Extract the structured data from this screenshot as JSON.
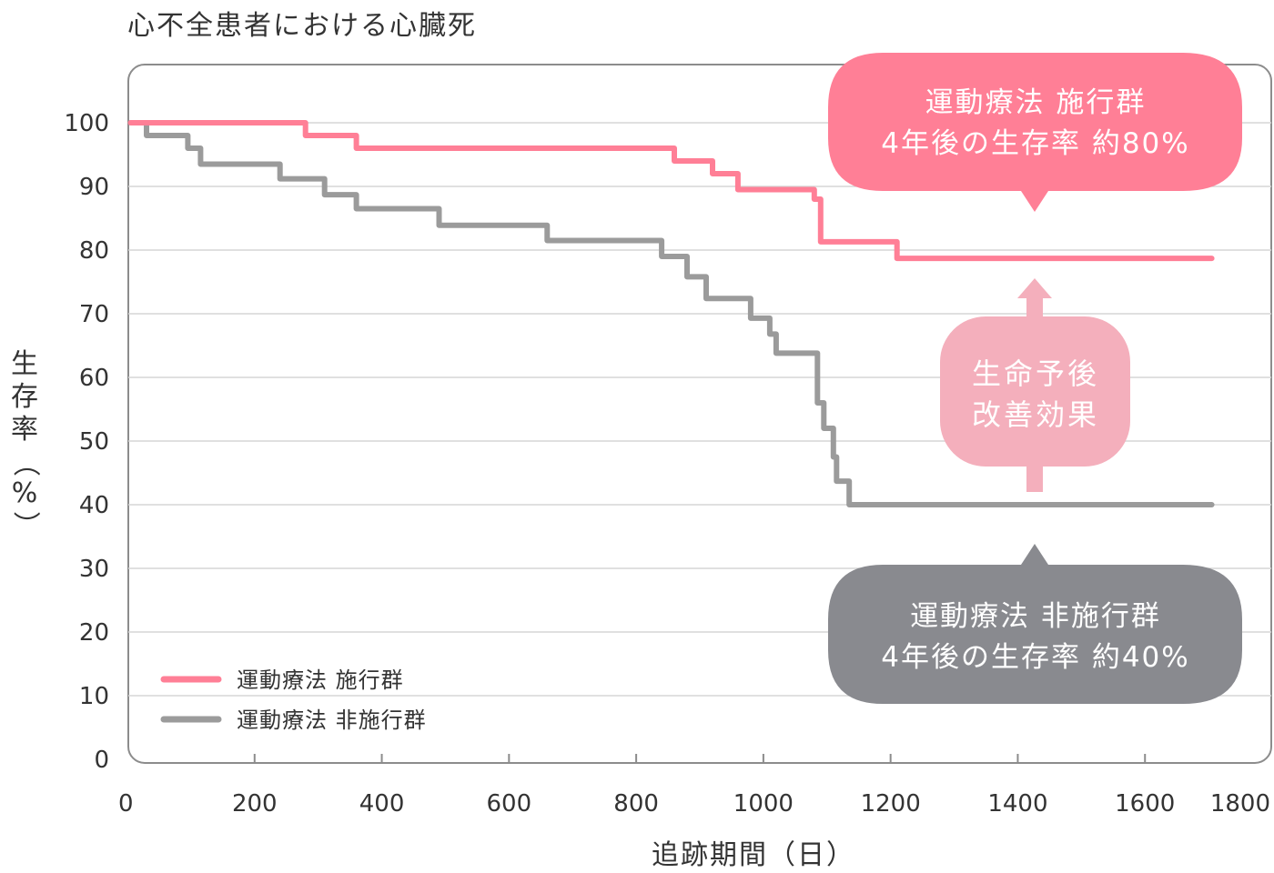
{
  "chart_data": {
    "type": "line",
    "title": "心不全患者における心臓死",
    "xlabel": "追跡期間（日）",
    "ylabel_chars": [
      "生",
      "存",
      "率",
      "（",
      "%",
      "）"
    ],
    "xlim": [
      0,
      1800
    ],
    "ylim": [
      0,
      100
    ],
    "x_ticks": [
      0,
      200,
      400,
      600,
      800,
      1000,
      1200,
      1400,
      1600,
      1800
    ],
    "y_ticks": [
      0,
      10,
      20,
      30,
      40,
      50,
      60,
      70,
      80,
      90,
      100
    ],
    "grid": true,
    "legend_position": "bottom-left",
    "series": [
      {
        "name": "運動療法 施行群",
        "color": "#ff7f96",
        "step": true,
        "points": [
          [
            5,
            100
          ],
          [
            280,
            100
          ],
          [
            280,
            98
          ],
          [
            360,
            98
          ],
          [
            360,
            96
          ],
          [
            860,
            96
          ],
          [
            860,
            94
          ],
          [
            920,
            94
          ],
          [
            920,
            92
          ],
          [
            960,
            92
          ],
          [
            960,
            89.5
          ],
          [
            1080,
            89.5
          ],
          [
            1080,
            88
          ],
          [
            1090,
            88
          ],
          [
            1090,
            81.3
          ],
          [
            1210,
            81.3
          ],
          [
            1210,
            78.7
          ],
          [
            1705,
            78.7
          ]
        ]
      },
      {
        "name": "運動療法 非施行群",
        "color": "#9b9b9b",
        "step": true,
        "points": [
          [
            5,
            100
          ],
          [
            30,
            100
          ],
          [
            30,
            98
          ],
          [
            95,
            98
          ],
          [
            95,
            96
          ],
          [
            115,
            96
          ],
          [
            115,
            93.5
          ],
          [
            240,
            93.5
          ],
          [
            240,
            91.2
          ],
          [
            310,
            91.2
          ],
          [
            310,
            88.7
          ],
          [
            360,
            88.7
          ],
          [
            360,
            86.5
          ],
          [
            490,
            86.5
          ],
          [
            490,
            83.9
          ],
          [
            660,
            83.9
          ],
          [
            660,
            81.5
          ],
          [
            840,
            81.5
          ],
          [
            840,
            79
          ],
          [
            880,
            79
          ],
          [
            880,
            75.8
          ],
          [
            910,
            75.8
          ],
          [
            910,
            72.4
          ],
          [
            980,
            72.4
          ],
          [
            980,
            69.3
          ],
          [
            1010,
            69.3
          ],
          [
            1010,
            66.8
          ],
          [
            1020,
            66.8
          ],
          [
            1020,
            63.8
          ],
          [
            1085,
            63.8
          ],
          [
            1085,
            56
          ],
          [
            1095,
            56
          ],
          [
            1095,
            52
          ],
          [
            1110,
            52
          ],
          [
            1110,
            47.5
          ],
          [
            1115,
            47.5
          ],
          [
            1115,
            43.7
          ],
          [
            1135,
            43.7
          ],
          [
            1135,
            40
          ],
          [
            1705,
            40
          ]
        ]
      }
    ],
    "callouts": {
      "treated": {
        "line1": "運動療法 施行群",
        "line2": "4年後の生存率 約80%",
        "color": "#ff7f96"
      },
      "untreated": {
        "line1": "運動療法 非施行群",
        "line2": "4年後の生存率 約40%",
        "color": "#898a8f"
      },
      "effect": {
        "line1": "生命予後",
        "line2": "改善効果",
        "color": "#f4afbc"
      }
    }
  }
}
